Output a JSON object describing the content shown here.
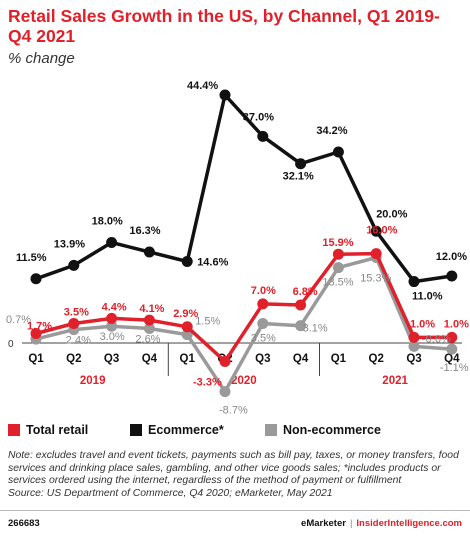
{
  "header": {
    "title": "Retail Sales Growth in the US, by Channel, Q1 2019-Q4 2021",
    "subtitle": "% change"
  },
  "chart_data": {
    "type": "line",
    "title": "Retail Sales Growth in the US, by Channel, Q1 2019-Q4 2021",
    "subtitle": "% change",
    "categories": [
      "Q1",
      "Q2",
      "Q3",
      "Q4",
      "Q1",
      "Q2",
      "Q3",
      "Q4",
      "Q1",
      "Q2",
      "Q3",
      "Q4"
    ],
    "years": [
      {
        "label": "2019",
        "start": 0,
        "end": 3
      },
      {
        "label": "2020",
        "start": 4,
        "end": 7
      },
      {
        "label": "2021",
        "start": 8,
        "end": 11
      }
    ],
    "zero_label": "0",
    "ylim": [
      -10,
      46
    ],
    "series": [
      {
        "name": "Total retail",
        "color": "#e0202a",
        "values": [
          1.7,
          3.5,
          4.4,
          4.1,
          2.9,
          -3.3,
          7.0,
          6.8,
          15.9,
          16.0,
          1.0,
          1.0
        ],
        "labels": [
          "1.7%",
          "3.5%",
          "4.4%",
          "4.1%",
          "2.9%",
          "-3.3%",
          "7.0%",
          "6.8%",
          "15.9%",
          "16.0%",
          "1.0%",
          "1.0%"
        ]
      },
      {
        "name": "Ecommerce*",
        "color": "#111111",
        "values": [
          11.5,
          13.9,
          18.0,
          16.3,
          14.6,
          44.4,
          37.0,
          32.1,
          34.2,
          20.0,
          11.0,
          12.0
        ],
        "labels": [
          "11.5%",
          "13.9%",
          "18.0%",
          "16.3%",
          "14.6%",
          "44.4%",
          "37.0%",
          "32.1%",
          "34.2%",
          "20.0%",
          "11.0%",
          "12.0%"
        ]
      },
      {
        "name": "Non-ecommerce",
        "color": "#9a9a9a",
        "values": [
          0.7,
          2.4,
          3.0,
          2.6,
          1.5,
          -8.7,
          3.5,
          3.1,
          13.5,
          15.3,
          -0.6,
          -1.1
        ],
        "labels": [
          "0.7%",
          "2.4%",
          "3.0%",
          "2.6%",
          "1.5%",
          "-8.7%",
          "3.5%",
          "3.1%",
          "13.5%",
          "15.3%",
          "-0.6%",
          "-1.1%"
        ]
      }
    ],
    "legend_placement": "bottom",
    "grid": false
  },
  "legend": {
    "items": [
      {
        "label": "Total retail",
        "color": "#e0202a"
      },
      {
        "label": "Ecommerce*",
        "color": "#111111"
      },
      {
        "label": "Non-ecommerce",
        "color": "#9a9a9a"
      }
    ]
  },
  "note": {
    "line1": "Note: excludes travel and event tickets, payments such as bill pay, taxes, or money transfers, food services and drinking place sales, gambling, and other vice goods sales; *includes products or services ordered using the internet, regardless of the method of payment or fulfillment",
    "line2": "Source: US Department of Commerce, Q4 2020; eMarketer, May 2021"
  },
  "footer": {
    "id": "266683",
    "brand": "eMarketer",
    "separator": "|",
    "site": "InsiderIntelligence.com"
  }
}
